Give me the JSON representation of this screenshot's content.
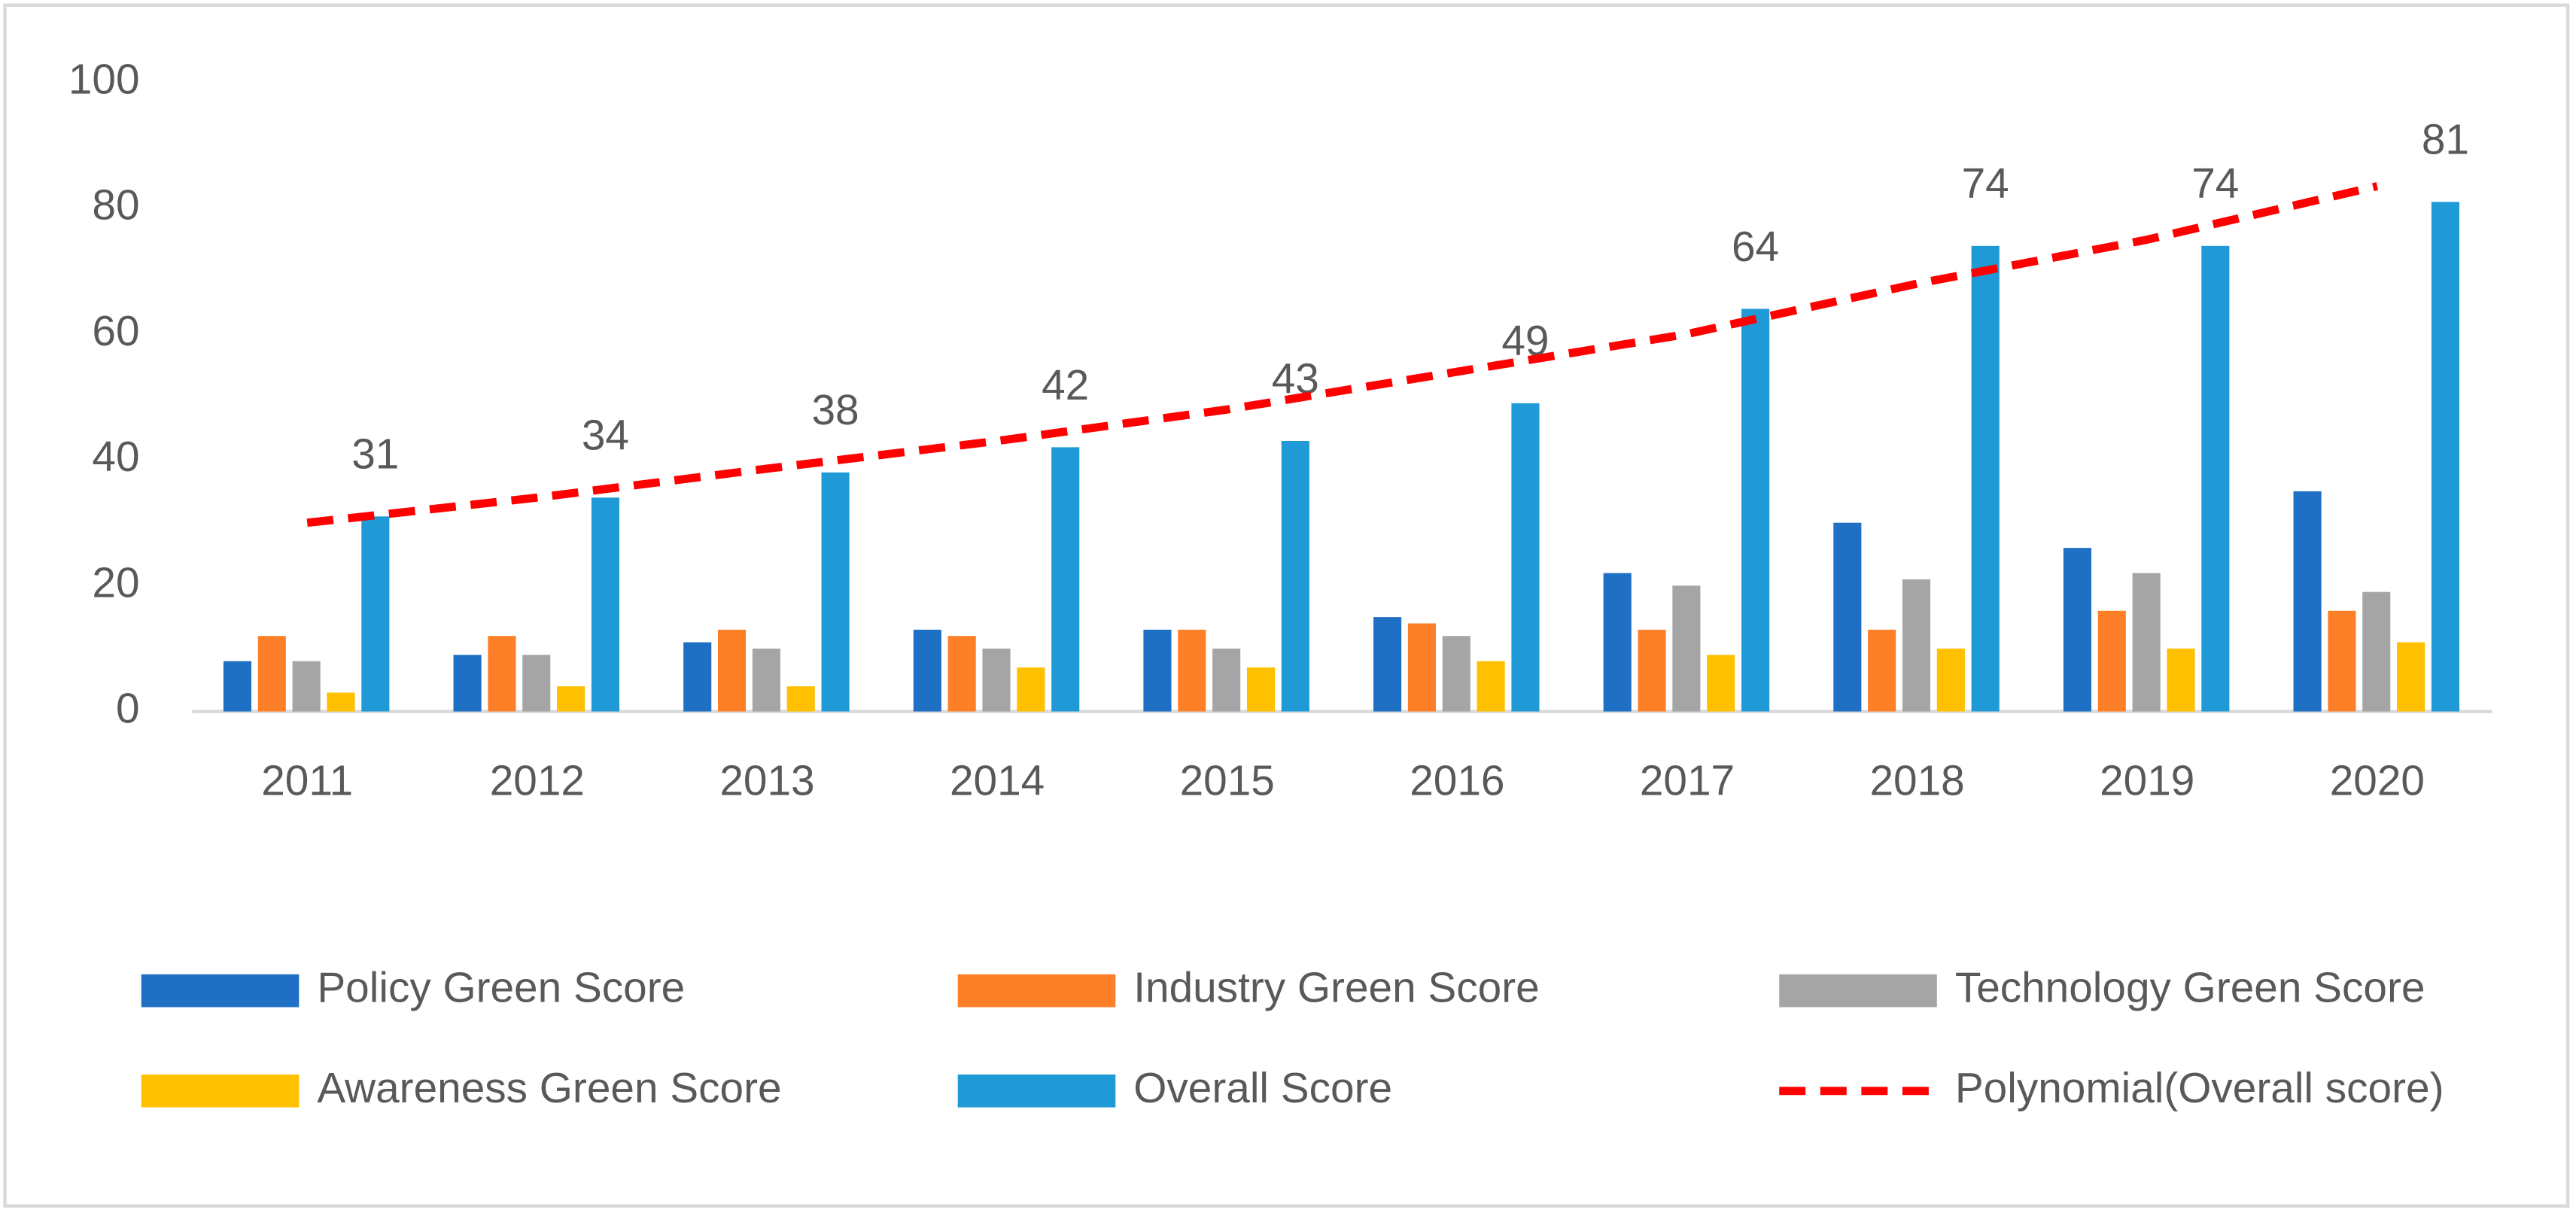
{
  "chart_data": {
    "type": "bar",
    "categories": [
      "2011",
      "2012",
      "2013",
      "2014",
      "2015",
      "2016",
      "2017",
      "2018",
      "2019",
      "2020"
    ],
    "ylim": [
      0,
      100
    ],
    "yticks": [
      0,
      20,
      40,
      60,
      80,
      100
    ],
    "grid": false,
    "legend": "bottom",
    "series": [
      {
        "name": "Policy Green Score",
        "color": "#1f6fc5",
        "values": [
          8,
          9,
          11,
          13,
          13,
          15,
          22,
          30,
          26,
          35
        ]
      },
      {
        "name": "Industry Green Score",
        "color": "#fd7f28",
        "values": [
          12,
          12,
          13,
          12,
          13,
          14,
          13,
          13,
          16,
          16
        ]
      },
      {
        "name": "Technology Green Score",
        "color": "#a5a5a5",
        "values": [
          8,
          9,
          10,
          10,
          10,
          12,
          20,
          21,
          22,
          19
        ]
      },
      {
        "name": "Awareness Green Score",
        "color": "#ffc000",
        "values": [
          3,
          4,
          4,
          7,
          7,
          8,
          9,
          10,
          10,
          11
        ]
      },
      {
        "name": "Overall Score",
        "color": "#1f9ad6",
        "values": [
          31,
          34,
          38,
          42,
          43,
          49,
          64,
          74,
          74,
          81
        ],
        "data_labels": true
      },
      {
        "name": "Polynomial(Overall score)",
        "color": "#ff0000",
        "type": "line",
        "dashed": true,
        "values": [
          30,
          34,
          38.6,
          43,
          48,
          54,
          60,
          68,
          75,
          83.5
        ]
      }
    ]
  }
}
